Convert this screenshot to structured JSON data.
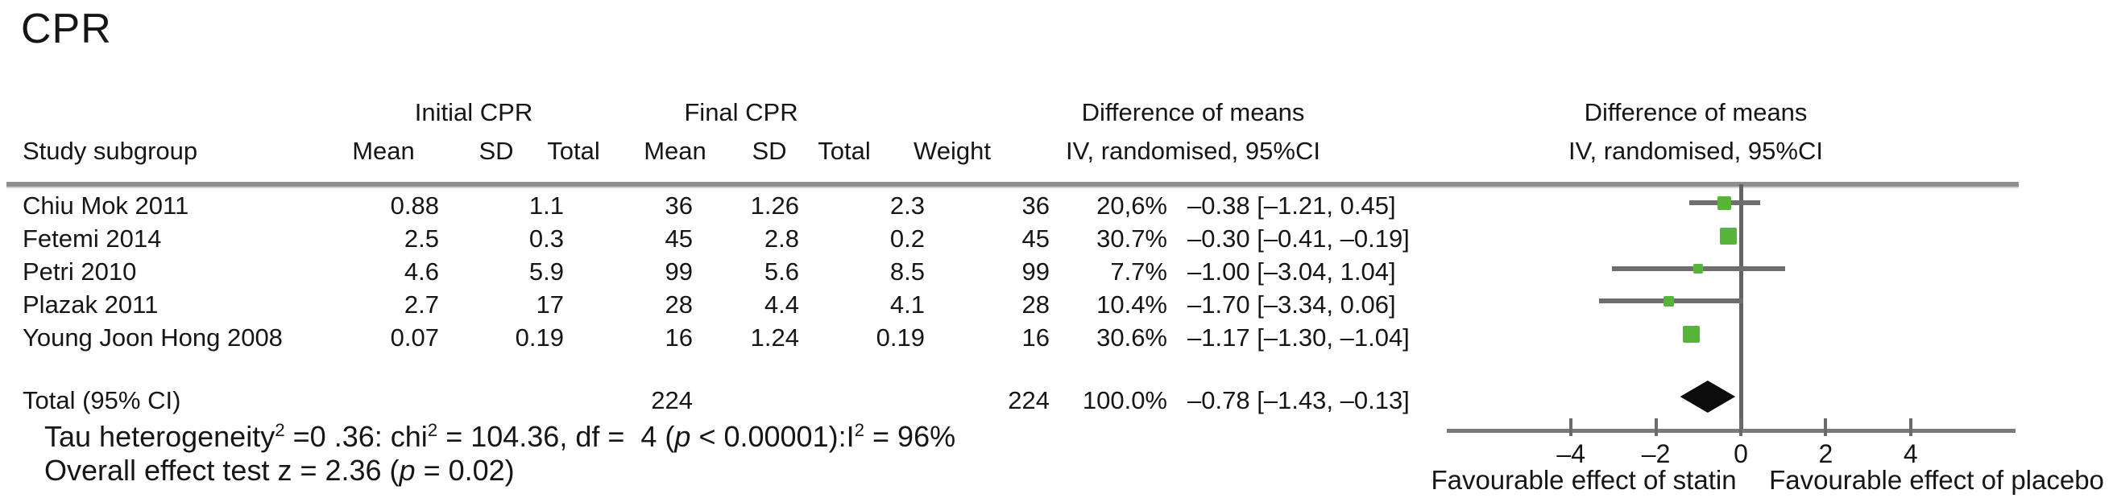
{
  "title": "CPR",
  "header": {
    "group_initial": "Initial CPR",
    "group_final": "Final CPR",
    "diff_means_left_line1": "Difference of means",
    "diff_means_left_line2": "IV, randomised, 95%CI",
    "diff_means_right_line1": "Difference of means",
    "diff_means_right_line2": "IV, randomised, 95%CI",
    "study": "Study subgroup",
    "mean1": "Mean",
    "sd1": "SD",
    "total1": "Total",
    "mean2": "Mean",
    "sd2": "SD",
    "total2": "Total",
    "weight": "Weight"
  },
  "rows": [
    {
      "name": "Chiu Mok 2011",
      "i_mean": "0.88",
      "i_sd": "1.1",
      "i_total": "36",
      "f_mean": "1.26",
      "f_sd": "2.3",
      "f_total": "36",
      "weight": "20,6%",
      "ci_text": "–0.38 [–1.21, 0.45]"
    },
    {
      "name": "Fetemi 2014",
      "i_mean": "2.5",
      "i_sd": "0.3",
      "i_total": "45",
      "f_mean": "2.8",
      "f_sd": "0.2",
      "f_total": "45",
      "weight": "30.7%",
      "ci_text": "–0.30 [–0.41, –0.19]"
    },
    {
      "name": "Petri 2010",
      "i_mean": "4.6",
      "i_sd": "5.9",
      "i_total": "99",
      "f_mean": "5.6",
      "f_sd": "8.5",
      "f_total": "99",
      "weight": "7.7%",
      "ci_text": "–1.00 [–3.04, 1.04]"
    },
    {
      "name": "Plazak 2011",
      "i_mean": "2.7",
      "i_sd": "17",
      "i_total": "28",
      "f_mean": "4.4",
      "f_sd": "4.1",
      "f_total": "28",
      "weight": "10.4%",
      "ci_text": "–1.70 [–3.34, 0.06]"
    },
    {
      "name": "Young Joon Hong 2008",
      "i_mean": "0.07",
      "i_sd": "0.19",
      "i_total": "16",
      "f_mean": "1.24",
      "f_sd": "0.19",
      "f_total": "16",
      "weight": "30.6%",
      "ci_text": "–1.17 [–1.30, –1.04]"
    }
  ],
  "total_row": {
    "label": "Total (95% CI)",
    "i_total": "224",
    "f_total": "224",
    "weight": "100.0%",
    "ci_text": "–0.78 [–1.43, –0.13]"
  },
  "stats": {
    "het": {
      "t1": "Tau heterogeneity",
      "sup1": "2",
      "t2": " =0 .36: chi",
      "sup2": "2",
      "t3": " = 104.36, df =  4 (",
      "p": "p",
      "t4": " < 0.00001):I",
      "sup3": "2",
      "t5": " = 96%"
    },
    "overall": {
      "t1": "Overall effect test z = 2.36 (",
      "p": "p",
      "t2": " = 0.02)"
    }
  },
  "axis_labels": {
    "left": "Favourable effect of statin",
    "right": "Favourable effect of placebo"
  },
  "chart_data": {
    "type": "forest",
    "title": "CPR",
    "effect_measure": "Difference of means, IV, randomised, 95%CI",
    "x_ticks": [
      -4,
      -2,
      0,
      2,
      4
    ],
    "x_range": [
      -7,
      6.5
    ],
    "marker_color": "#56b43a",
    "studies": [
      {
        "name": "Chiu Mok 2011",
        "effect": -0.38,
        "ci_low": -1.21,
        "ci_high": 0.45,
        "weight_pct": 20.6
      },
      {
        "name": "Fetemi 2014",
        "effect": -0.3,
        "ci_low": -0.41,
        "ci_high": -0.19,
        "weight_pct": 30.7
      },
      {
        "name": "Petri 2010",
        "effect": -1.0,
        "ci_low": -3.04,
        "ci_high": 1.04,
        "weight_pct": 7.7
      },
      {
        "name": "Plazak 2011",
        "effect": -1.7,
        "ci_low": -3.34,
        "ci_high": 0.06,
        "weight_pct": 10.4
      },
      {
        "name": "Young Joon Hong 2008",
        "effect": -1.17,
        "ci_low": -1.3,
        "ci_high": -1.04,
        "weight_pct": 30.6
      }
    ],
    "total": {
      "label": "Total (95% CI)",
      "effect": -0.78,
      "ci_low": -1.43,
      "ci_high": -0.13,
      "weight_pct": 100.0
    },
    "heterogeneity": {
      "tau2": 0.36,
      "chi2": 104.36,
      "df": 4,
      "p": "< 0.00001",
      "I2_pct": 96
    },
    "overall_effect": {
      "z": 2.36,
      "p": 0.02
    },
    "footer_left": "Favourable effect of statin",
    "footer_right": "Favourable effect of placebo"
  }
}
